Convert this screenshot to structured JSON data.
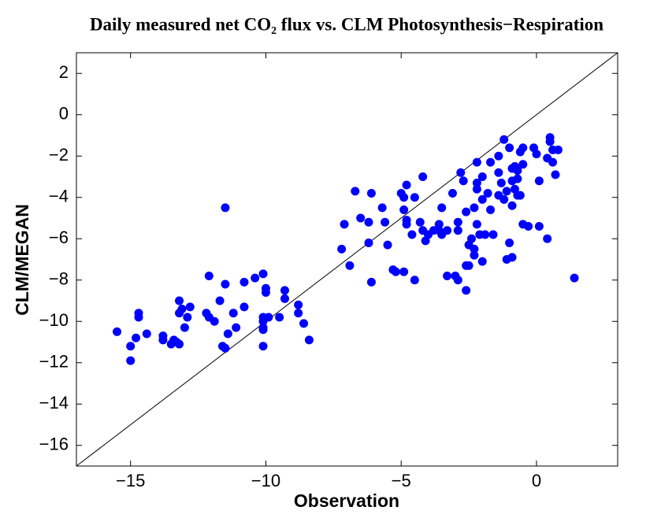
{
  "chart_data": {
    "type": "scatter",
    "title": "Daily measured net CO₂ flux vs. CLM Photosynthesis−Respiration",
    "xlabel": "Observation",
    "ylabel": "CLM/MEGAN",
    "color": "#0000ff",
    "grid": false,
    "xlim": [
      -17,
      3
    ],
    "ylim": [
      -17,
      3
    ],
    "xticks": [
      {
        "value": -15,
        "label": "−15"
      },
      {
        "value": -10,
        "label": "−10"
      },
      {
        "value": -5,
        "label": "−5"
      },
      0
    ],
    "yticks": [
      2,
      0,
      {
        "value": -2,
        "label": "−2"
      },
      {
        "value": -4,
        "label": "−4"
      },
      {
        "value": -6,
        "label": "−6"
      },
      {
        "value": -8,
        "label": "−8"
      },
      {
        "value": -10,
        "label": "−10"
      },
      {
        "value": -12,
        "label": "−12"
      },
      {
        "value": -14,
        "label": "−14"
      },
      {
        "value": -16,
        "label": "−16"
      }
    ],
    "x": [
      -15.5,
      -15.0,
      -15.0,
      -14.7,
      -14.7,
      -14.8,
      -14.4,
      -13.8,
      -13.8,
      -13.5,
      -13.4,
      -13.3,
      -13.2,
      -13.2,
      -13.2,
      -13.1,
      -13.0,
      -12.9,
      -12.8,
      -12.2,
      -12.1,
      -12.1,
      -11.9,
      -11.6,
      -11.5,
      -11.5,
      -11.7,
      -11.4,
      -11.2,
      -11.1,
      -10.8,
      -10.8,
      -10.4,
      -10.1,
      -10.1,
      -10.1,
      -10.1,
      -10.1,
      -10.0,
      -10.0,
      -10.1,
      -9.9,
      -9.5,
      -9.3,
      -9.3,
      -8.8,
      -8.8,
      -8.6,
      -8.4,
      -11.5,
      -7.2,
      -7.1,
      -6.9,
      -6.7,
      -6.5,
      -6.2,
      -6.1,
      -6.2,
      -6.1,
      -5.7,
      -5.6,
      -5.5,
      -5.3,
      -5.2,
      -5.0,
      -4.9,
      -4.9,
      -4.9,
      -4.8,
      -4.8,
      -4.8,
      -4.6,
      -4.5,
      -4.5,
      -4.3,
      -4.2,
      -4.2,
      -4.1,
      -4.0,
      -3.8,
      -3.6,
      -3.5,
      -3.6,
      -3.5,
      -3.3,
      -3.3,
      -3.1,
      -3.0,
      -2.9,
      -2.9,
      -2.8,
      -2.9,
      -2.7,
      -2.6,
      -2.6,
      -2.6,
      -2.5,
      -2.5,
      -2.3,
      -2.4,
      -2.2,
      -2.2,
      -2.3,
      -2.3,
      -2.1,
      -2.2,
      -2.0,
      -2.0,
      -1.9,
      -2.0,
      -2.2,
      -1.8,
      -1.7,
      -1.7,
      -1.6,
      -1.4,
      -1.4,
      -1.4,
      -1.3,
      -1.2,
      -1.1,
      -1.0,
      -0.9,
      -0.9,
      -0.9,
      -0.8,
      -0.8,
      -0.7,
      -0.7,
      -0.7,
      -0.6,
      -0.5,
      -0.5,
      -0.5,
      -0.3,
      -0.1,
      0.0,
      0.1,
      0.1,
      0.4,
      0.4,
      0.5,
      0.6,
      0.6,
      0.5,
      0.8,
      0.7,
      1.4,
      -1.1,
      -0.9,
      -1.2,
      -1.0,
      -0.6
    ],
    "values": [
      -10.5,
      -11.2,
      -11.9,
      -9.8,
      -9.6,
      -10.8,
      -10.6,
      -10.9,
      -10.7,
      -11.1,
      -10.9,
      -11.0,
      -9.0,
      -9.6,
      -11.1,
      -9.4,
      -10.3,
      -9.8,
      -9.3,
      -9.6,
      -7.8,
      -9.8,
      -10.0,
      -11.2,
      -11.3,
      -8.2,
      -9.0,
      -10.6,
      -9.6,
      -10.3,
      -9.3,
      -8.1,
      -7.9,
      -7.7,
      -10.4,
      -10.3,
      -10.0,
      -9.8,
      -8.6,
      -8.4,
      -11.2,
      -9.8,
      -9.8,
      -8.9,
      -8.5,
      -9.2,
      -9.6,
      -10.1,
      -10.9,
      -4.5,
      -6.5,
      -5.3,
      -7.3,
      -3.7,
      -5.0,
      -6.2,
      -3.8,
      -5.2,
      -8.1,
      -4.5,
      -5.2,
      -6.3,
      -7.5,
      -7.6,
      -3.8,
      -4.0,
      -4.6,
      -7.6,
      -5.3,
      -5.1,
      -3.4,
      -5.8,
      -8.0,
      -4.0,
      -5.2,
      -5.6,
      -3.0,
      -6.1,
      -5.8,
      -5.6,
      -5.6,
      -4.5,
      -5.3,
      -5.8,
      -5.6,
      -7.8,
      -3.8,
      -7.8,
      -8.0,
      -5.2,
      -2.8,
      -5.6,
      -3.2,
      -4.7,
      -7.3,
      -8.5,
      -7.3,
      -6.3,
      -4.5,
      -6.0,
      -5.3,
      -3.3,
      -6.5,
      -6.8,
      -5.8,
      -3.6,
      -3.0,
      -4.1,
      -5.8,
      -7.1,
      -2.3,
      -3.8,
      -2.3,
      -4.6,
      -5.8,
      -2.0,
      -3.9,
      -2.8,
      -3.3,
      -4.1,
      -3.7,
      -6.2,
      -2.6,
      -4.4,
      -3.2,
      -2.5,
      -3.6,
      -3.1,
      -3.9,
      -2.7,
      -1.8,
      -2.4,
      -1.6,
      -5.3,
      -5.4,
      -1.6,
      -1.9,
      -3.2,
      -5.4,
      -6.0,
      -2.1,
      -1.3,
      -1.7,
      -2.3,
      -1.1,
      -1.7,
      -2.9,
      -7.9,
      -7.0,
      -6.9,
      -1.2,
      -1.6,
      -3.9
    ]
  }
}
